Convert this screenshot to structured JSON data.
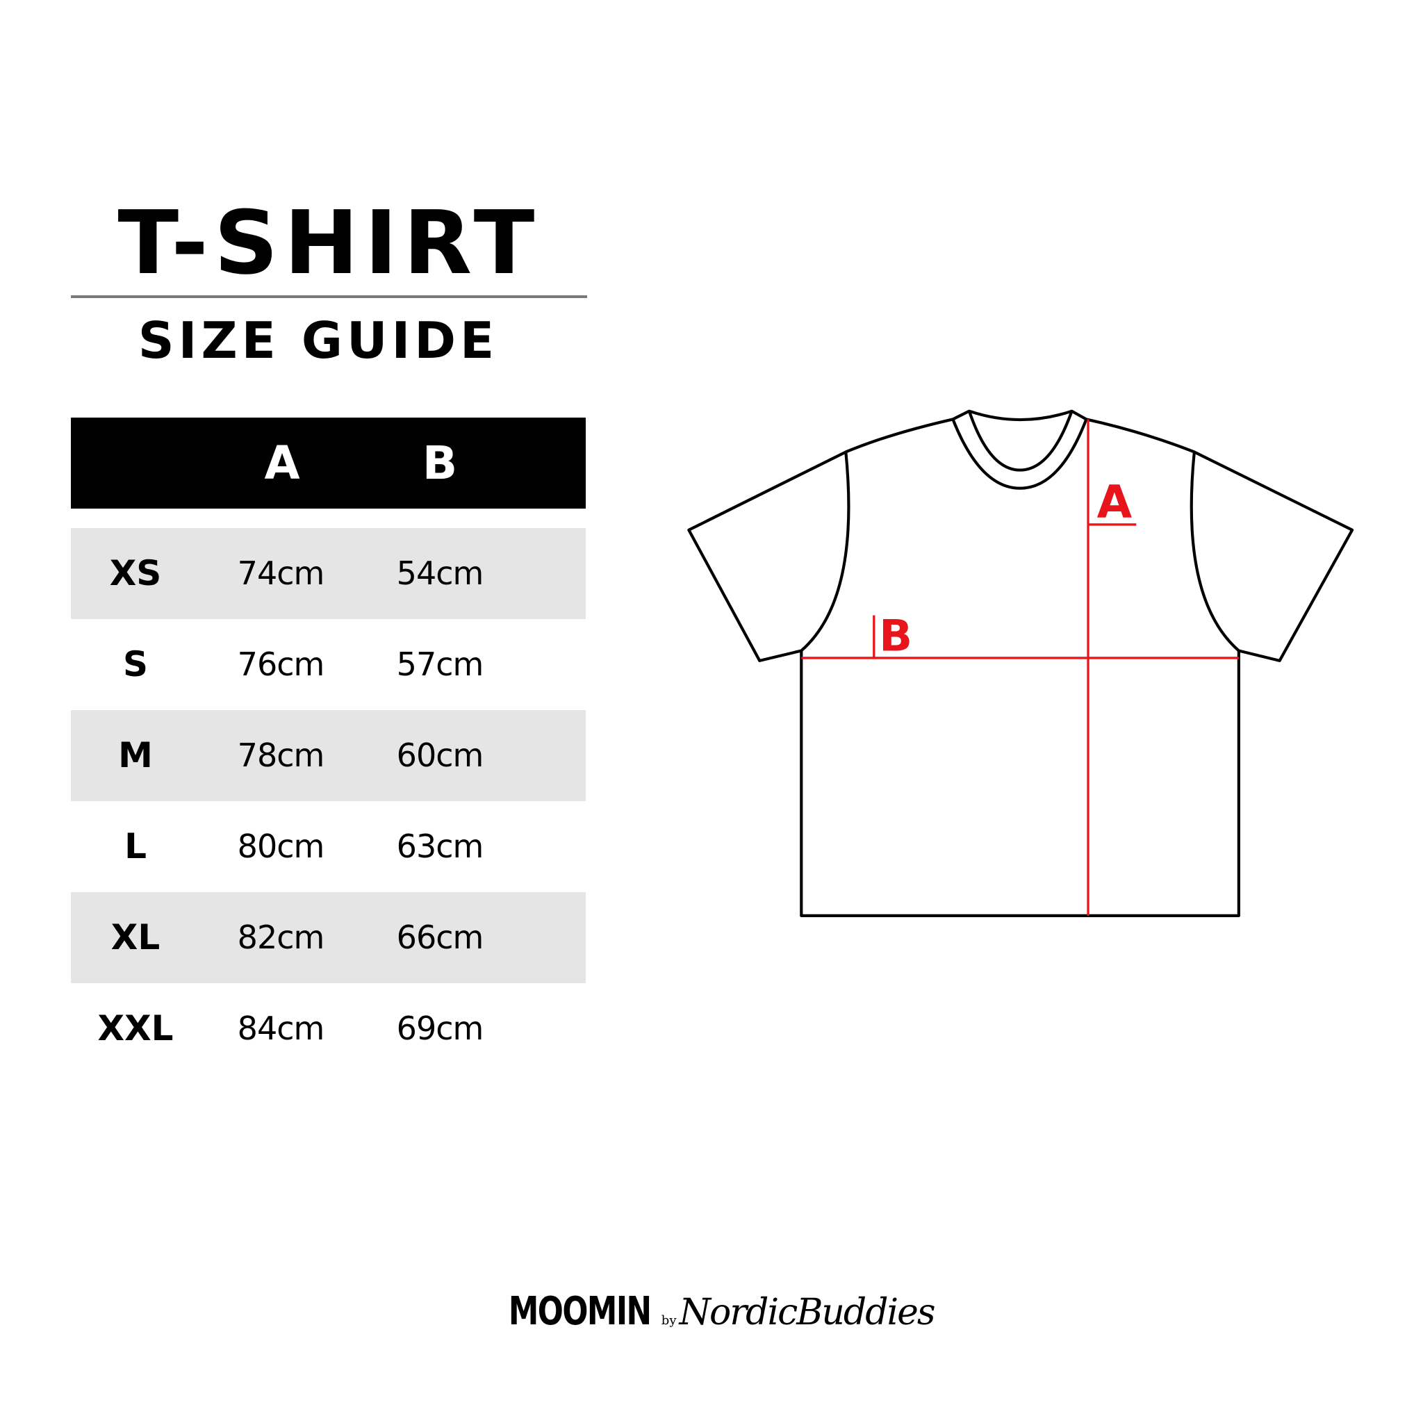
{
  "title": "T-SHIRT",
  "subtitle": "SIZE GUIDE",
  "table": {
    "headers": [
      "A",
      "B"
    ],
    "rows": [
      {
        "size": "XS",
        "a": "74cm",
        "b": "54cm"
      },
      {
        "size": "S",
        "a": "76cm",
        "b": "57cm"
      },
      {
        "size": "M",
        "a": "78cm",
        "b": "60cm"
      },
      {
        "size": "L",
        "a": "80cm",
        "b": "63cm"
      },
      {
        "size": "XL",
        "a": "82cm",
        "b": "66cm"
      },
      {
        "size": "XXL",
        "a": "84cm",
        "b": "69cm"
      }
    ]
  },
  "diagram": {
    "label_a": "A",
    "label_b": "B",
    "measure_color": "#e8141c",
    "row_shade_color": "#e5e5e5"
  },
  "logo": {
    "brand": "MOOMIN",
    "by": "by",
    "partner": "NordicBuddies"
  }
}
